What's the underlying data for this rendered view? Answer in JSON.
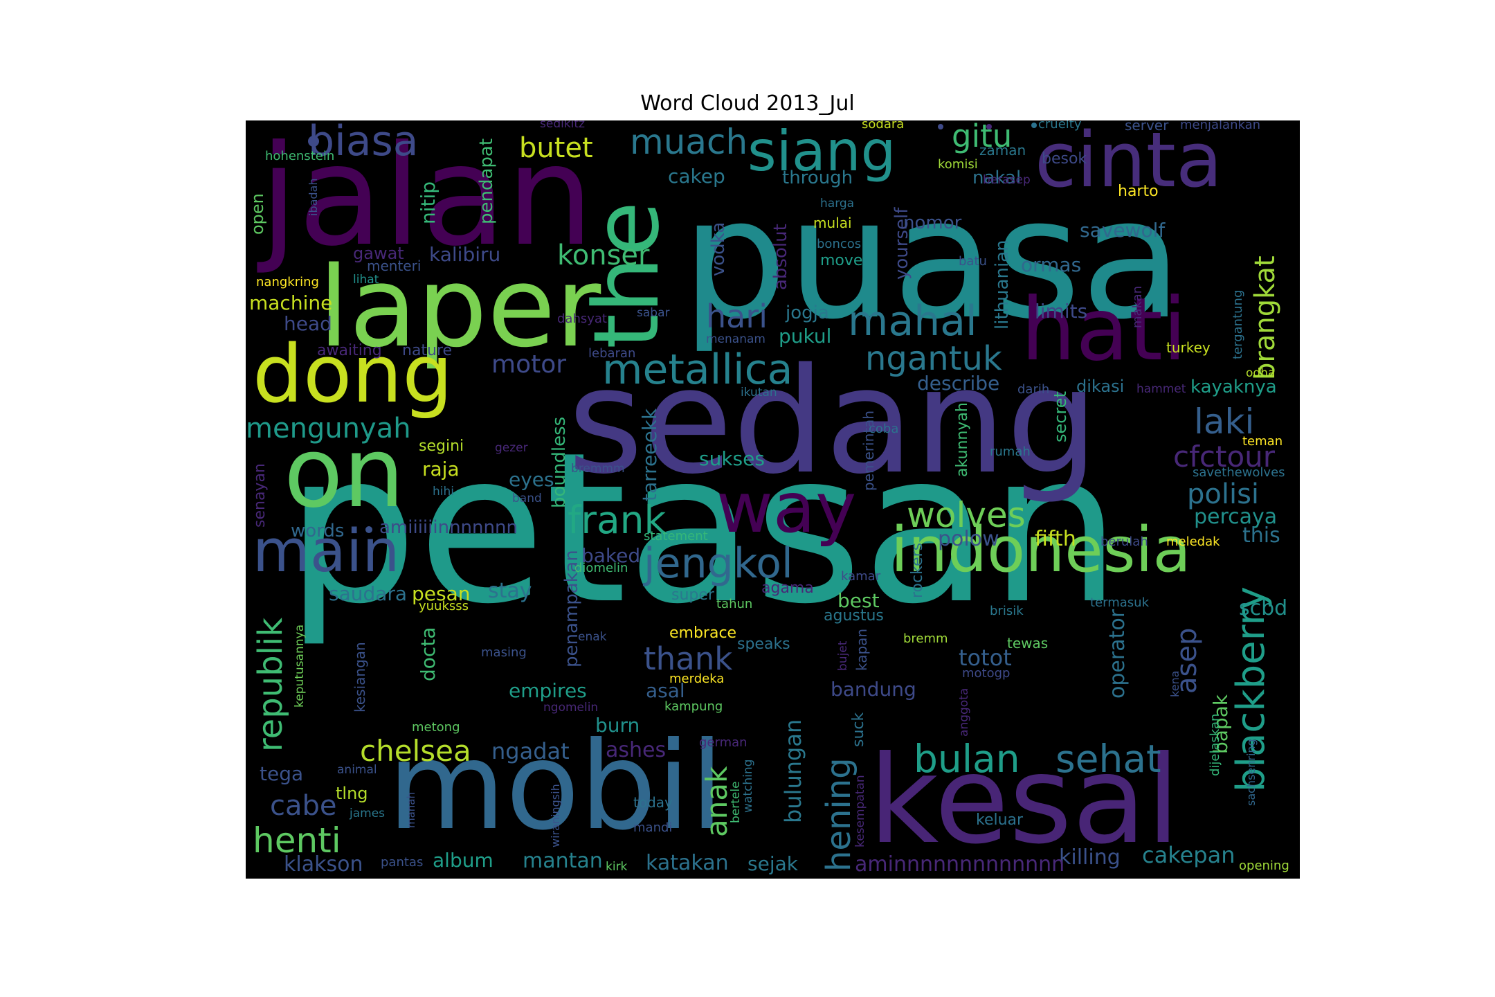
{
  "title": "Word Cloud 2013_Jul",
  "words": [
    {
      "text": "petasan",
      "color": "#1f9a8a"
    },
    {
      "text": "puasa",
      "color": "#1f8a8c"
    },
    {
      "text": "sedang",
      "color": "#443983"
    },
    {
      "text": "jalan",
      "color": "#440154"
    },
    {
      "text": "mobil",
      "color": "#31688e"
    },
    {
      "text": "kesal",
      "color": "#482576"
    },
    {
      "text": "laper",
      "color": "#7ad151"
    },
    {
      "text": "on",
      "color": "#5ec962"
    },
    {
      "text": "the",
      "color": "#35b779"
    },
    {
      "text": "dong",
      "color": "#c8e020"
    },
    {
      "text": "hati",
      "color": "#440154"
    },
    {
      "text": "cinta",
      "color": "#472d7b"
    },
    {
      "text": "indonesia",
      "color": "#6ece58"
    },
    {
      "text": "way",
      "color": "#440154"
    },
    {
      "text": "main",
      "color": "#3b528b"
    },
    {
      "text": "siang",
      "color": "#21918c"
    },
    {
      "text": "biasa",
      "color": "#3e4a89"
    },
    {
      "text": "metallica",
      "color": "#26828e"
    },
    {
      "text": "mahal",
      "color": "#2a788e"
    },
    {
      "text": "jengkol",
      "color": "#31688e"
    },
    {
      "text": "wolves",
      "color": "#6ece58"
    },
    {
      "text": "frank",
      "color": "#22a884"
    },
    {
      "text": "bulan",
      "color": "#1f9e89"
    },
    {
      "text": "sehat",
      "color": "#2c728e"
    },
    {
      "text": "blackberry",
      "color": "#1f9e89"
    },
    {
      "text": "republik",
      "color": "#3fbc73"
    },
    {
      "text": "chelsea",
      "color": "#b5de2b"
    },
    {
      "text": "henti",
      "color": "#5ec962"
    },
    {
      "text": "muach",
      "color": "#2a788e"
    },
    {
      "text": "gitu",
      "color": "#3fbc73"
    },
    {
      "text": "ngantuk",
      "color": "#2a788e"
    },
    {
      "text": "hari",
      "color": "#3b528b"
    },
    {
      "text": "konser",
      "color": "#3fbc73"
    },
    {
      "text": "mengunyah",
      "color": "#1f9a8a"
    },
    {
      "text": "butet",
      "color": "#c8e020"
    },
    {
      "text": "laki",
      "color": "#355f8d"
    },
    {
      "text": "cfctour",
      "color": "#482878"
    },
    {
      "text": "polisi",
      "color": "#2c728e"
    },
    {
      "text": "brangkat",
      "color": "#a0da39"
    },
    {
      "text": "motor",
      "color": "#3e4a89"
    },
    {
      "text": "thank",
      "color": "#3b528b"
    },
    {
      "text": "hening",
      "color": "#2c728e"
    },
    {
      "text": "anak",
      "color": "#5ec962"
    },
    {
      "text": "asep",
      "color": "#3b528b"
    },
    {
      "text": "totot",
      "color": "#355f8d"
    },
    {
      "text": "cabe",
      "color": "#3b528b"
    },
    {
      "text": "killing",
      "color": "#3b528b"
    },
    {
      "text": "cakepan",
      "color": "#26828e"
    },
    {
      "text": "klakson",
      "color": "#3b528b"
    },
    {
      "text": "album",
      "color": "#1f9e89"
    },
    {
      "text": "mantan",
      "color": "#26828e"
    },
    {
      "text": "katakan",
      "color": "#2c728e"
    },
    {
      "text": "sejak",
      "color": "#2a788e"
    },
    {
      "text": "aminnnnnnnnnnnnn",
      "color": "#482878"
    },
    {
      "text": "bulungan",
      "color": "#2a788e"
    },
    {
      "text": "ngadat",
      "color": "#355f8d"
    },
    {
      "text": "ashes",
      "color": "#482878"
    },
    {
      "text": "burn",
      "color": "#21918c"
    },
    {
      "text": "empires",
      "color": "#1f9e89"
    },
    {
      "text": "asal",
      "color": "#355f8d"
    },
    {
      "text": "bandung",
      "color": "#3e4a89"
    },
    {
      "text": "tega",
      "color": "#3b528b"
    },
    {
      "text": "tlng",
      "color": "#b5de2b"
    },
    {
      "text": "docta",
      "color": "#3fbc73"
    },
    {
      "text": "pesan",
      "color": "#c8e020"
    },
    {
      "text": "saudara",
      "color": "#2c728e"
    },
    {
      "text": "stay",
      "color": "#2c728e"
    },
    {
      "text": "baked",
      "color": "#3e4a89"
    },
    {
      "text": "penampakan",
      "color": "#3b528b"
    },
    {
      "text": "best",
      "color": "#5ec962"
    },
    {
      "text": "agustus",
      "color": "#2a788e"
    },
    {
      "text": "scbd",
      "color": "#21918c"
    },
    {
      "text": "operator",
      "color": "#2c728e"
    },
    {
      "text": "bapak",
      "color": "#5ec962"
    },
    {
      "text": "this",
      "color": "#2c728e"
    },
    {
      "text": "fifth",
      "color": "#c8e020"
    },
    {
      "text": "polow",
      "color": "#3b528b"
    },
    {
      "text": "percaya",
      "color": "#21918c"
    },
    {
      "text": "raja",
      "color": "#c8e020"
    },
    {
      "text": "eyes",
      "color": "#2c728e"
    },
    {
      "text": "sukses",
      "color": "#1f9e89"
    },
    {
      "text": "segini",
      "color": "#b5de2b"
    },
    {
      "text": "words",
      "color": "#31688e"
    },
    {
      "text": "amiiiiiinnnnnnn",
      "color": "#3e4a89"
    },
    {
      "text": "machine",
      "color": "#c8e020"
    },
    {
      "text": "head",
      "color": "#3e4a89"
    },
    {
      "text": "kalibiru",
      "color": "#3e4a89"
    },
    {
      "text": "gawat",
      "color": "#482878"
    },
    {
      "text": "menteri",
      "color": "#3b528b"
    },
    {
      "text": "lihat",
      "color": "#21918c"
    },
    {
      "text": "nangkring",
      "color": "#fde725"
    },
    {
      "text": "awaiting",
      "color": "#482878"
    },
    {
      "text": "nature",
      "color": "#3e4a89"
    },
    {
      "text": "describe",
      "color": "#355f8d"
    },
    {
      "text": "kayaknya",
      "color": "#1f9e89"
    },
    {
      "text": "dikasi",
      "color": "#2c728e"
    },
    {
      "text": "nomor",
      "color": "#3b528b"
    },
    {
      "text": "yourself",
      "color": "#3e4a89"
    },
    {
      "text": "mulai",
      "color": "#c8e020"
    },
    {
      "text": "savewolf",
      "color": "#31688e"
    },
    {
      "text": "ormas",
      "color": "#31688e"
    },
    {
      "text": "limits",
      "color": "#3e4a89"
    },
    {
      "text": "harto",
      "color": "#fde725"
    },
    {
      "text": "nakal",
      "color": "#2c728e"
    },
    {
      "text": "through",
      "color": "#2a788e"
    },
    {
      "text": "cakep",
      "color": "#2a788e"
    },
    {
      "text": "jogja",
      "color": "#2a788e"
    },
    {
      "text": "pukul",
      "color": "#1f9e89"
    },
    {
      "text": "besok",
      "color": "#3e4a89"
    },
    {
      "text": "zaman",
      "color": "#2a788e"
    },
    {
      "text": "komisi",
      "color": "#a0da39"
    },
    {
      "text": "server",
      "color": "#3b528b"
    },
    {
      "text": "cruelty",
      "color": "#2a788e"
    },
    {
      "text": "menjalankan",
      "color": "#3e4a89"
    },
    {
      "text": "sodara",
      "color": "#c8e020"
    },
    {
      "text": "sedikitz",
      "color": "#482878"
    },
    {
      "text": "hohenstein",
      "color": "#3fbc73"
    },
    {
      "text": "turkey",
      "color": "#c8e020"
    },
    {
      "text": "teman",
      "color": "#fde725"
    },
    {
      "text": "savethewolves",
      "color": "#2c728e"
    },
    {
      "text": "rumah",
      "color": "#2a788e"
    },
    {
      "text": "darih",
      "color": "#3b528b"
    },
    {
      "text": "hammet",
      "color": "#482878"
    },
    {
      "text": "odha",
      "color": "#b5de2b"
    },
    {
      "text": "meledak",
      "color": "#fde725"
    },
    {
      "text": "berulah",
      "color": "#3e4a89"
    },
    {
      "text": "termasuk",
      "color": "#2c728e"
    },
    {
      "text": "brisik",
      "color": "#2a788e"
    },
    {
      "text": "tewas",
      "color": "#5ec962"
    },
    {
      "text": "motogp",
      "color": "#3e4a89"
    },
    {
      "text": "bremm",
      "color": "#a0da39"
    },
    {
      "text": "keluar",
      "color": "#2c728e"
    },
    {
      "text": "kampung",
      "color": "#5ec962"
    },
    {
      "text": "merdeka",
      "color": "#fde725"
    },
    {
      "text": "embrace",
      "color": "#fde725"
    },
    {
      "text": "speaks",
      "color": "#2c728e"
    },
    {
      "text": "super",
      "color": "#2a788e"
    },
    {
      "text": "tahun",
      "color": "#5ec962"
    },
    {
      "text": "agama",
      "color": "#482878"
    },
    {
      "text": "kamar",
      "color": "#3e4a89"
    },
    {
      "text": "statement",
      "color": "#35b779"
    },
    {
      "text": "diomelin",
      "color": "#3fbc73"
    },
    {
      "text": "bremmm",
      "color": "#3b528b"
    },
    {
      "text": "band",
      "color": "#3b528b"
    },
    {
      "text": "hihi",
      "color": "#2c728e"
    },
    {
      "text": "gezer",
      "color": "#482878"
    },
    {
      "text": "coba",
      "color": "#2c728e"
    },
    {
      "text": "ikutan",
      "color": "#2c728e"
    },
    {
      "text": "menanam",
      "color": "#3b528b"
    },
    {
      "text": "lebaran",
      "color": "#3e4a89"
    },
    {
      "text": "dahsyat",
      "color": "#482878"
    },
    {
      "text": "sabar",
      "color": "#3b528b"
    },
    {
      "text": "boncos",
      "color": "#2c728e"
    },
    {
      "text": "harga",
      "color": "#2c728e"
    },
    {
      "text": "move",
      "color": "#1f9e89"
    },
    {
      "text": "batu",
      "color": "#3b528b"
    },
    {
      "text": "yuuksss",
      "color": "#c8e020"
    },
    {
      "text": "enak",
      "color": "#3b528b"
    },
    {
      "text": "masing",
      "color": "#3b528b"
    },
    {
      "text": "ngomelin",
      "color": "#482878"
    },
    {
      "text": "metong",
      "color": "#5ec962"
    },
    {
      "text": "german",
      "color": "#482878"
    },
    {
      "text": "animal",
      "color": "#3b528b"
    },
    {
      "text": "james",
      "color": "#2a788e"
    },
    {
      "text": "today",
      "color": "#2c728e"
    },
    {
      "text": "mandi",
      "color": "#3b528b"
    },
    {
      "text": "kirk",
      "color": "#5ec962"
    },
    {
      "text": "pantas",
      "color": "#3b528b"
    },
    {
      "text": "opening",
      "color": "#a0da39"
    },
    {
      "text": "pendapat",
      "color": "#3fbc73"
    },
    {
      "text": "nitip",
      "color": "#35b779"
    },
    {
      "text": "open",
      "color": "#5ec962"
    },
    {
      "text": "ibadah",
      "color": "#3b528b"
    },
    {
      "text": "berasep",
      "color": "#482878"
    },
    {
      "text": "vodka",
      "color": "#3b528b"
    },
    {
      "text": "absolut",
      "color": "#482878"
    },
    {
      "text": "lithuanian",
      "color": "#2a788e"
    },
    {
      "text": "makan",
      "color": "#482878"
    },
    {
      "text": "tergantung",
      "color": "#2c728e"
    },
    {
      "text": "tarreeekk",
      "color": "#2c728e"
    },
    {
      "text": "boundless",
      "color": "#35b779"
    },
    {
      "text": "pemerintah",
      "color": "#3b528b"
    },
    {
      "text": "akunnyah",
      "color": "#3fbc73"
    },
    {
      "text": "secret",
      "color": "#35b779"
    },
    {
      "text": "senayan",
      "color": "#482878"
    },
    {
      "text": "keputusannya",
      "color": "#6ece58"
    },
    {
      "text": "kesiangan",
      "color": "#3b528b"
    },
    {
      "text": "rockers",
      "color": "#2c728e"
    },
    {
      "text": "bujet",
      "color": "#482878"
    },
    {
      "text": "kapan",
      "color": "#3b528b"
    },
    {
      "text": "suck",
      "color": "#2c728e"
    },
    {
      "text": "kesempatan",
      "color": "#482878"
    },
    {
      "text": "anggota",
      "color": "#482878"
    },
    {
      "text": "kena",
      "color": "#3b528b"
    },
    {
      "text": "dijelaskan",
      "color": "#35b779"
    },
    {
      "text": "sachsenring",
      "color": "#31688e"
    },
    {
      "text": "wiraningsih",
      "color": "#3b528b"
    },
    {
      "text": "manah",
      "color": "#3b528b"
    },
    {
      "text": "bertele",
      "color": "#3fbc73"
    },
    {
      "text": "watching",
      "color": "#2c728e"
    }
  ],
  "dot_colors": [
    "#3e4a89",
    "#3b528b",
    "#2c728e",
    "#482878",
    "#3e4a89"
  ]
}
